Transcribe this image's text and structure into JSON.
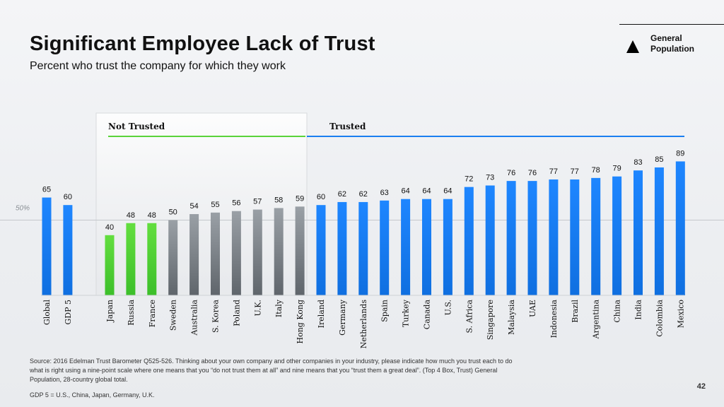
{
  "slide": {
    "title": "Significant Employee Lack of Trust",
    "subtitle": "Percent who trust the company for which they work",
    "legend_label": "General Population",
    "source": "Source: 2016 Edelman Trust Barometer Q525-526. Thinking about your own company and other companies in your industry, please indicate how much you trust each to do what is right using a nine-point scale where one means that you “do not trust them at all” and nine means that you “trust them a great deal”. (Top 4 Box, Trust) General Population, 28-country global total.",
    "gdp_note": "GDP 5 = U.S., China, Japan, Germany, U.K.",
    "page_number": "42"
  },
  "chart_data": {
    "type": "bar",
    "title": "Significant Employee Lack of Trust",
    "ylim": [
      0,
      100
    ],
    "reference_line": {
      "value": 50,
      "label": "50%"
    },
    "groups": [
      {
        "label": "Not Trusted",
        "color": "#5ad33a"
      },
      {
        "label": "Trusted",
        "color": "#1a7ef0"
      }
    ],
    "categories": [
      "Global",
      "GDP 5",
      "Japan",
      "Russia",
      "France",
      "Sweden",
      "Australia",
      "S. Korea",
      "Poland",
      "U.K.",
      "Italy",
      "Hong Kong",
      "Ireland",
      "Germany",
      "Netherlands",
      "Spain",
      "Turkey",
      "Canada",
      "U.S.",
      "S. Africa",
      "Singapore",
      "Malaysia",
      "UAE",
      "Indonesia",
      "Brazil",
      "Argentina",
      "China",
      "India",
      "Colombia",
      "Mexico"
    ],
    "values": [
      65,
      60,
      40,
      48,
      48,
      50,
      54,
      55,
      56,
      57,
      58,
      59,
      60,
      62,
      62,
      63,
      64,
      64,
      64,
      72,
      73,
      76,
      76,
      77,
      77,
      78,
      79,
      83,
      85,
      89
    ],
    "bar_colors": [
      "#1a7ef0",
      "#1a7ef0",
      "#5ad33a",
      "#5ad33a",
      "#5ad33a",
      "#8a9096",
      "#8a9096",
      "#8a9096",
      "#8a9096",
      "#8a9096",
      "#8a9096",
      "#8a9096",
      "#1a7ef0",
      "#1a7ef0",
      "#1a7ef0",
      "#1a7ef0",
      "#1a7ef0",
      "#1a7ef0",
      "#1a7ef0",
      "#1a7ef0",
      "#1a7ef0",
      "#1a7ef0",
      "#1a7ef0",
      "#1a7ef0",
      "#1a7ef0",
      "#1a7ef0",
      "#1a7ef0",
      "#1a7ef0",
      "#1a7ef0",
      "#1a7ef0"
    ]
  }
}
